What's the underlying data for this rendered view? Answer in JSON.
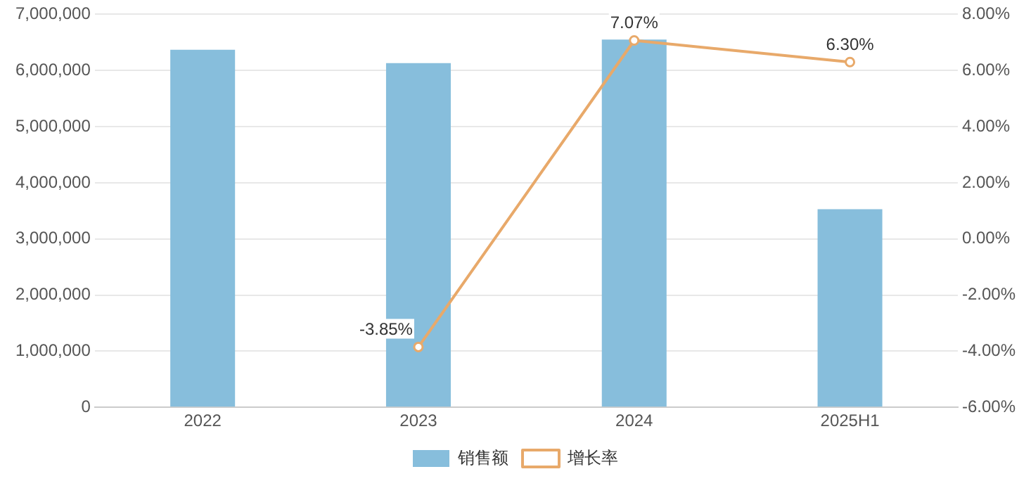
{
  "chart_data": {
    "type": "bar",
    "categories": [
      "2022",
      "2023",
      "2024",
      "2025H1"
    ],
    "series": [
      {
        "name": "销售额",
        "color": "#87bedc",
        "values": [
          6370000,
          6130000,
          6550000,
          3530000
        ]
      },
      {
        "name": "增长率",
        "type": "line",
        "axis": "y2",
        "color": "#e8a96a",
        "values": [
          null,
          -3.85,
          7.07,
          6.3
        ],
        "value_labels": [
          null,
          "-3.85%",
          "7.07%",
          "6.30%"
        ]
      }
    ],
    "ylim": [
      0,
      7000000
    ],
    "yticks": [
      {
        "value": 0,
        "label": "0"
      },
      {
        "value": 1000000,
        "label": "1,000,000"
      },
      {
        "value": 2000000,
        "label": "2,000,000"
      },
      {
        "value": 3000000,
        "label": "3,000,000"
      },
      {
        "value": 4000000,
        "label": "4,000,000"
      },
      {
        "value": 5000000,
        "label": "5,000,000"
      },
      {
        "value": 6000000,
        "label": "6,000,000"
      },
      {
        "value": 7000000,
        "label": "7,000,000"
      }
    ],
    "y2lim": [
      -6,
      8
    ],
    "y2ticks": [
      {
        "value": -6,
        "label": "-6.00%"
      },
      {
        "value": -4,
        "label": "-4.00%"
      },
      {
        "value": -2,
        "label": "-2.00%"
      },
      {
        "value": 0,
        "label": "0.00%"
      },
      {
        "value": 2,
        "label": "2.00%"
      },
      {
        "value": 4,
        "label": "4.00%"
      },
      {
        "value": 6,
        "label": "6.00%"
      },
      {
        "value": 8,
        "label": "8.00%"
      }
    ],
    "grid": "y",
    "legend": "bottom",
    "marker": "circle",
    "line_style": "solid"
  }
}
